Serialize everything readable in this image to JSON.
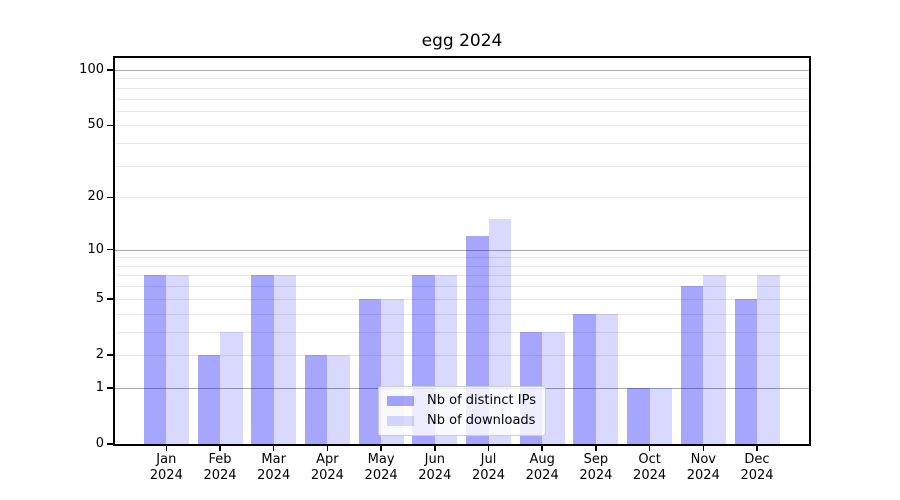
{
  "chart_data": {
    "type": "bar",
    "title": "egg 2024",
    "x_categories_month": [
      "Jan",
      "Feb",
      "Mar",
      "Apr",
      "May",
      "Jun",
      "Jul",
      "Aug",
      "Sep",
      "Oct",
      "Nov",
      "Dec"
    ],
    "x_categories_year": "2024",
    "series": [
      {
        "name": "Nb of distinct IPs",
        "color": "rgba(0,0,255,0.35)",
        "values": [
          7,
          2,
          7,
          2,
          5,
          7,
          12,
          3,
          4,
          1,
          6,
          5
        ]
      },
      {
        "name": "Nb of downloads",
        "color": "rgba(0,0,255,0.15)",
        "values": [
          7,
          3,
          7,
          2,
          5,
          7,
          15,
          3,
          4,
          1,
          7,
          7
        ]
      }
    ],
    "y_axis": {
      "scale": "log10(1+value)",
      "labeled_ticks": [
        0,
        1,
        2,
        5,
        10,
        20,
        50,
        100
      ],
      "major_gridlines": [
        1,
        10,
        100
      ],
      "minor_gridlines": [
        2,
        3,
        4,
        5,
        6,
        7,
        8,
        9,
        20,
        30,
        40,
        50,
        60,
        70,
        80,
        90
      ],
      "ylim": [
        0,
        115
      ]
    },
    "legend": {
      "position": "lower center"
    },
    "grid": true,
    "colors": {
      "bar_distinct_ips": "rgba(0,0,255,0.35)",
      "bar_downloads": "rgba(0,0,255,0.15)",
      "grid_major": "#a8a8a8",
      "grid_minor": "#e7e7e7",
      "axis_frame": "#000000",
      "tick_text": "#000000",
      "legend_border": "#cccccc",
      "legend_background": "rgba(255,255,255,0.8)",
      "background": "#ffffff"
    }
  }
}
